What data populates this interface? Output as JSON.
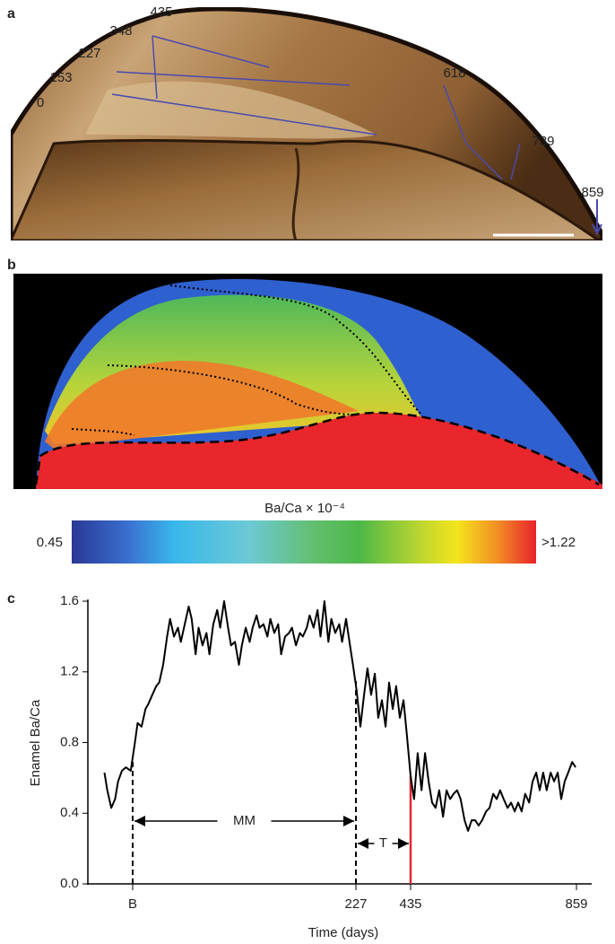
{
  "panel_a": {
    "label": "a",
    "stages": [
      0,
      153,
      227,
      348,
      435,
      618,
      739,
      859
    ]
  },
  "panel_b": {
    "label": "b"
  },
  "colorbar": {
    "title": "Ba/Ca × 10⁻⁴",
    "min_label": 0.45,
    "max_label": ">1.22"
  },
  "chart_data": {
    "type": "line",
    "panel_label": "c",
    "xlabel": "Time (days)",
    "ylabel": "Enamel Ba/Ca",
    "color": "#000000",
    "annotations": [
      "MM",
      "T"
    ],
    "x": [
      -29,
      -26,
      -22,
      -18,
      -15,
      -11,
      -7,
      -2,
      2,
      5,
      9,
      13,
      16,
      20,
      24,
      27,
      31,
      35,
      38,
      42,
      46,
      49,
      53,
      57,
      60,
      64,
      67,
      71,
      75,
      78,
      82,
      86,
      89,
      93,
      97,
      100,
      104,
      108,
      111,
      115,
      119,
      122,
      126,
      129,
      133,
      137,
      140,
      144,
      148,
      151,
      155,
      159,
      162,
      166,
      170,
      173,
      177,
      180,
      184,
      188,
      191,
      195,
      199,
      202,
      206,
      210,
      213,
      217,
      221,
      224,
      230,
      244,
      258,
      271,
      285,
      299,
      312,
      326,
      340,
      353,
      367,
      380,
      394,
      408,
      421,
      435,
      444,
      453,
      463,
      472,
      481,
      490,
      499,
      508,
      518,
      527,
      536,
      545,
      554,
      563,
      573,
      582,
      591,
      600,
      609,
      618,
      628,
      637,
      646,
      655,
      664,
      673,
      683,
      692,
      701,
      710,
      719,
      728,
      738,
      747,
      756,
      765,
      774,
      783,
      793,
      802,
      811,
      820,
      829,
      838,
      848,
      857
    ],
    "values": [
      0.63,
      0.53,
      0.43,
      0.48,
      0.58,
      0.64,
      0.66,
      0.64,
      0.79,
      0.91,
      0.89,
      0.99,
      1.02,
      1.07,
      1.12,
      1.14,
      1.24,
      1.4,
      1.5,
      1.4,
      1.45,
      1.37,
      1.47,
      1.57,
      1.5,
      1.3,
      1.45,
      1.35,
      1.42,
      1.3,
      1.47,
      1.55,
      1.45,
      1.6,
      1.45,
      1.35,
      1.37,
      1.24,
      1.35,
      1.45,
      1.37,
      1.45,
      1.52,
      1.45,
      1.47,
      1.4,
      1.5,
      1.42,
      1.47,
      1.3,
      1.4,
      1.42,
      1.45,
      1.35,
      1.42,
      1.4,
      1.45,
      1.52,
      1.45,
      1.55,
      1.4,
      1.6,
      1.37,
      1.5,
      1.42,
      1.47,
      1.37,
      1.5,
      1.35,
      1.24,
      1.09,
      0.89,
      1.07,
      1.22,
      1.07,
      1.19,
      0.94,
      1.04,
      0.89,
      1.14,
      0.99,
      1.12,
      0.94,
      1.04,
      0.84,
      0.61,
      0.48,
      0.74,
      0.53,
      0.74,
      0.58,
      0.46,
      0.43,
      0.53,
      0.38,
      0.53,
      0.48,
      0.51,
      0.53,
      0.48,
      0.36,
      0.3,
      0.36,
      0.36,
      0.33,
      0.36,
      0.41,
      0.43,
      0.51,
      0.48,
      0.53,
      0.48,
      0.43,
      0.46,
      0.41,
      0.46,
      0.41,
      0.51,
      0.46,
      0.58,
      0.63,
      0.53,
      0.63,
      0.53,
      0.63,
      0.58,
      0.63,
      0.48,
      0.58,
      0.63,
      0.69,
      0.66
    ],
    "xlim": [
      -46,
      898
    ],
    "xticks": [
      {
        "value": 0,
        "label": "B"
      },
      227,
      435,
      859
    ],
    "ylim": [
      0,
      1.6
    ],
    "yticks": [
      {
        "value": 0,
        "label": "0.0"
      },
      0.4,
      0.8,
      1.2,
      1.6
    ]
  }
}
